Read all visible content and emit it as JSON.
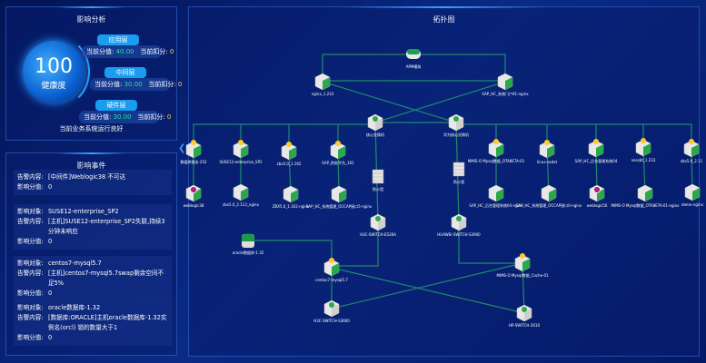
{
  "impact_analysis": {
    "title": "影响分析",
    "health_score": "100",
    "health_label": "健康度",
    "layers": [
      {
        "name": "应用层",
        "score_label": "当前分值:",
        "score": "40.00",
        "deduct_label": "当前扣分:",
        "deduct": "0"
      },
      {
        "name": "中间层",
        "score_label": "当前分值:",
        "score": "30.00",
        "deduct_label": "当前扣分:",
        "deduct": "0"
      },
      {
        "name": "硬件层",
        "score_label": "当前分值:",
        "score": "30.00",
        "deduct_label": "当前扣分:",
        "deduct": "0"
      }
    ],
    "status": "当前业务系统运行良好"
  },
  "impact_events": {
    "title": "影响事件",
    "collapse_icon": "chevron-left-icon",
    "events": [
      {
        "rows": [
          {
            "k": "告警内容:",
            "v": "[中间件]Weblogic38 不可达"
          },
          {
            "k": "影响分值:",
            "v": "0"
          }
        ]
      },
      {
        "rows": [
          {
            "k": "影响对象:",
            "v": "SUSE12-enterprise_SP2"
          },
          {
            "k": "告警内容:",
            "v": "[主机]SUSE12-enterprise_SP2失联,持续3分钟未响应"
          },
          {
            "k": "影响分值:",
            "v": "0"
          }
        ]
      },
      {
        "rows": [
          {
            "k": "影响对象:",
            "v": "centos7-mysql5.7"
          },
          {
            "k": "告警内容:",
            "v": "[主机]centos7-mysql5.7swap剩余空间不足5%"
          },
          {
            "k": "影响分值:",
            "v": "0"
          }
        ]
      },
      {
        "rows": [
          {
            "k": "影响对象:",
            "v": "oracle数据库-1.32"
          },
          {
            "k": "告警内容:",
            "v": "[数据库:ORACLE]主机oracle数据库-1.32实例名(orcl) 锁的数量大于1"
          },
          {
            "k": "影响分值:",
            "v": "0"
          }
        ]
      }
    ]
  },
  "topology": {
    "title": "拓扑图",
    "colors": {
      "link": "#1f8a6a",
      "ok": "#2aa84a",
      "warn": "#ffc928",
      "alert": "#b0207a"
    },
    "nodes": [
      {
        "id": "apm",
        "label": "APM模拟",
        "type": "apm",
        "status": "ok"
      },
      {
        "id": "n233",
        "label": "nginx_1.233",
        "type": "host",
        "status": "ok"
      },
      {
        "id": "sapn",
        "label": "SAP_HC_系统门户01-nginx",
        "type": "host",
        "status": "ok"
      },
      {
        "id": "coreL",
        "label": "核心交换机",
        "type": "switch",
        "status": "ok"
      },
      {
        "id": "coreR",
        "label": "华为核心交换机",
        "type": "switch",
        "status": "ok"
      },
      {
        "id": "a1",
        "label": "数据库服务-252",
        "type": "host",
        "status": "warn"
      },
      {
        "id": "a2",
        "label": "SUSE12-enterprise_SP2",
        "type": "host",
        "status": "warn"
      },
      {
        "id": "a3",
        "label": "zbx5.0_1.162",
        "type": "host",
        "status": "warn"
      },
      {
        "id": "a4",
        "label": "SAP_财务平台_161",
        "type": "host",
        "status": "warn"
      },
      {
        "id": "a5",
        "label": "MIMS-O Mysql数据_OTA8ETA-01",
        "type": "host",
        "status": "warn"
      },
      {
        "id": "a6",
        "label": "linux-sadxt",
        "type": "host",
        "status": "warn"
      },
      {
        "id": "a7",
        "label": "SAP_HC_后台管理系统04",
        "type": "host",
        "status": "warn"
      },
      {
        "id": "a8",
        "label": "nessbt_1.233",
        "type": "host",
        "status": "warn"
      },
      {
        "id": "a9",
        "label": "zbx5.0_2.11",
        "type": "host",
        "status": "warn"
      },
      {
        "id": "b1",
        "label": "weblogic38",
        "type": "host",
        "status": "alert"
      },
      {
        "id": "b2",
        "label": "zbx5.0_2.113_nginx",
        "type": "host",
        "status": "ok"
      },
      {
        "id": "b3",
        "label": "ZBX5.0_1.162-nginx",
        "type": "host",
        "status": "ok"
      },
      {
        "id": "b4",
        "label": "SAP_HC_系统管理_OCCAP接口5-nginx",
        "type": "host",
        "status": "ok"
      },
      {
        "id": "b5",
        "label": "SAP_HC_后台管理系统04-nginx",
        "type": "host",
        "status": "ok"
      },
      {
        "id": "b6",
        "label": "SAP_HC_系统管理_OCCAP接口0-nginx",
        "type": "host",
        "status": "ok"
      },
      {
        "id": "b7",
        "label": "weblogic56",
        "type": "host",
        "status": "alert"
      },
      {
        "id": "b8",
        "label": "MIMS-O Mysql数据_OTA8ETA-01-nginx",
        "type": "host",
        "status": "ok"
      },
      {
        "id": "b9",
        "label": "demo-nginx",
        "type": "host",
        "status": "ok"
      },
      {
        "id": "fwL",
        "label": "防火墙",
        "type": "firewall",
        "status": "ok"
      },
      {
        "id": "fwR",
        "label": "防火墙",
        "type": "firewall",
        "status": "ok"
      },
      {
        "id": "h3c1",
        "label": "H3C-SWITCH-E526A",
        "type": "switch",
        "status": "ok"
      },
      {
        "id": "hw",
        "label": "HUAWEI-SWITCH-S3900",
        "type": "switch",
        "status": "ok"
      },
      {
        "id": "ora",
        "label": "oracle数据库-1.32",
        "type": "db",
        "status": "ok"
      },
      {
        "id": "cent",
        "label": "centos7-mysql5.7",
        "type": "host",
        "status": "warn"
      },
      {
        "id": "mims",
        "label": "MIMS-O Mysql数据_Cache-01",
        "type": "host",
        "status": "warn"
      },
      {
        "id": "h3c2",
        "label": "H3C-SWITCH-S3600",
        "type": "switch",
        "status": "ok"
      },
      {
        "id": "hp",
        "label": "HP-SWITCH-2610",
        "type": "switch",
        "status": "ok"
      }
    ]
  }
}
